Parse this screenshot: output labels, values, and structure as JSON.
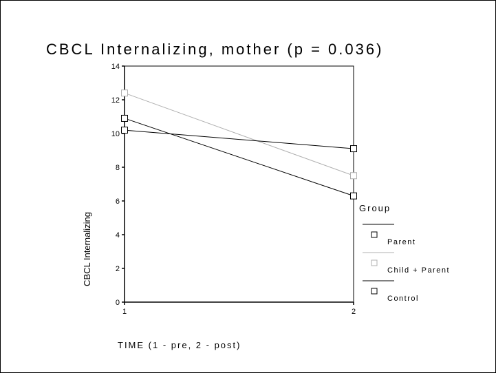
{
  "chart_data": {
    "type": "line",
    "title": "CBCL Internalizing, mother (p = 0.036)",
    "xlabel": "TIME (1 - pre, 2 - post)",
    "ylabel": "CBCL Internalizing",
    "x": [
      1,
      2
    ],
    "xticks": [
      "1",
      "2"
    ],
    "yticks": [
      0,
      2,
      4,
      6,
      8,
      10,
      12,
      14
    ],
    "ylim": [
      0,
      14
    ],
    "legend_title": "Group",
    "legend_position": "right",
    "grid": false,
    "marker": "square",
    "series": [
      {
        "name": "Parent",
        "values": [
          10.9,
          6.3
        ],
        "color": "#000000"
      },
      {
        "name": "Child + Parent",
        "values": [
          12.4,
          7.5
        ],
        "color": "#b0b0b0"
      },
      {
        "name": "Control",
        "values": [
          10.2,
          9.1
        ],
        "color": "#000000"
      }
    ]
  }
}
